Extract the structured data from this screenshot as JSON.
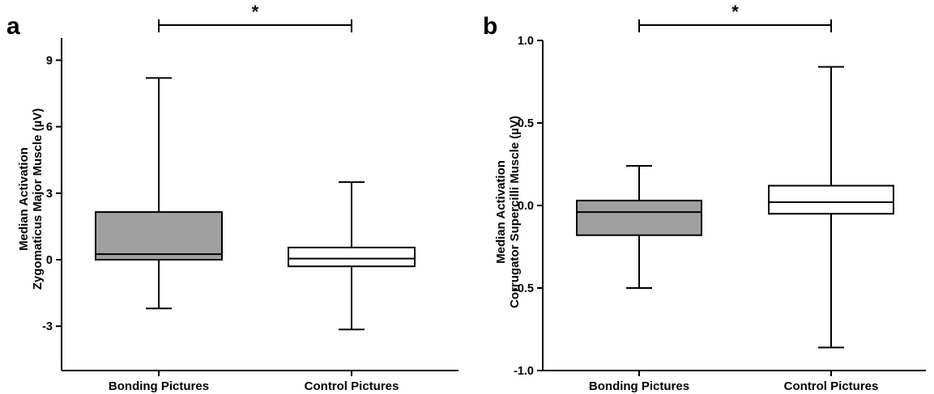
{
  "chart_data": [
    {
      "type": "box",
      "panel_label": "a",
      "ylabel_lines": [
        "Median Activation",
        "Zygomaticus Major Muscle (µV)"
      ],
      "ylim": [
        -5,
        10
      ],
      "yticks": [
        9,
        6,
        3,
        0,
        -3
      ],
      "ytick_labels": [
        "9",
        "6",
        "3",
        "0",
        "-3"
      ],
      "categories": [
        "Bonding Pictures",
        "Control Pictures"
      ],
      "boxes": [
        {
          "category": "Bonding Pictures",
          "min": -2.2,
          "q1": 0.0,
          "median": 0.25,
          "q3": 2.15,
          "max": 8.2,
          "fill": "#a0a0a0"
        },
        {
          "category": "Control Pictures",
          "min": -3.15,
          "q1": -0.3,
          "median": 0.05,
          "q3": 0.55,
          "max": 3.5,
          "fill": "#ffffff"
        }
      ],
      "significance": {
        "between": [
          "Bonding Pictures",
          "Control Pictures"
        ],
        "label": "*"
      }
    },
    {
      "type": "box",
      "panel_label": "b",
      "ylabel_lines": [
        "Median Activation",
        "Corrugator Supercilli Muscle (µV)"
      ],
      "ylim": [
        -1.0,
        1.0
      ],
      "yticks": [
        1.0,
        0.5,
        0.0,
        -0.5,
        -1.0
      ],
      "ytick_labels": [
        "1.0",
        "0.5",
        "0.0",
        "-0.5",
        "-1.0"
      ],
      "categories": [
        "Bonding Pictures",
        "Control Pictures"
      ],
      "boxes": [
        {
          "category": "Bonding Pictures",
          "min": -0.5,
          "q1": -0.18,
          "median": -0.04,
          "q3": 0.03,
          "max": 0.24,
          "fill": "#a0a0a0"
        },
        {
          "category": "Control Pictures",
          "min": -0.86,
          "q1": -0.05,
          "median": 0.02,
          "q3": 0.12,
          "max": 0.84,
          "fill": "#ffffff"
        }
      ],
      "significance": {
        "between": [
          "Bonding Pictures",
          "Control Pictures"
        ],
        "label": "*"
      }
    }
  ]
}
